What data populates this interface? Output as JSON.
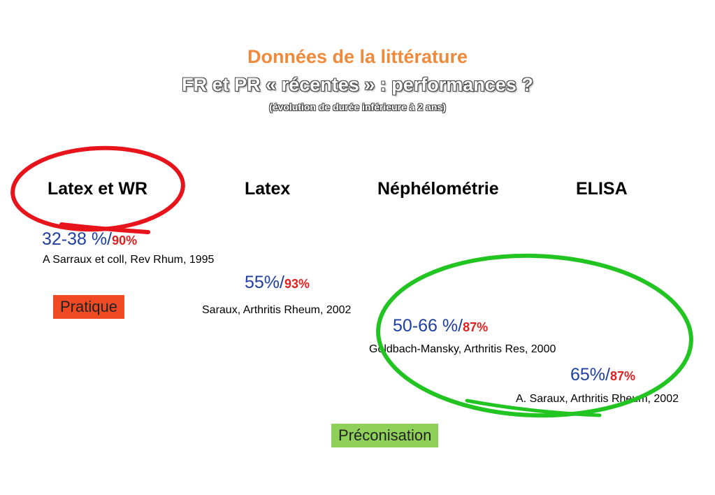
{
  "title": {
    "main": "Données de la littérature",
    "sub": "FR et PR « récentes » : performances ?",
    "note": "(évolution de durée inférieure à 2 ans)"
  },
  "columns": [
    "Latex et WR",
    "Latex",
    "Néphélométrie",
    "ELISA"
  ],
  "results": [
    {
      "value": "32-38 %/",
      "highlight": "90%",
      "reference": "A Sarraux et coll, Rev Rhum, 1995"
    },
    {
      "value": "55%/",
      "highlight": "93%",
      "reference": "Saraux, Arthritis Rheum, 2002"
    },
    {
      "value": "50-66 %/",
      "highlight": "87%",
      "reference": "Goldbach-Mansky, Arthritis Res, 2000"
    },
    {
      "value": "65%/",
      "highlight": "87%",
      "reference": "A. Saraux, Arthritis Rheum, 2002"
    }
  ],
  "tags": {
    "practice": "Pratique",
    "recommendation": "Préconisation"
  },
  "colors": {
    "title": "#ee8a3a",
    "value": "#1f3fa0",
    "highlight": "#e02020",
    "circle_red": "#e8141c",
    "circle_green": "#22c422",
    "tag_red": "#f04a24",
    "tag_green": "#8ed05a"
  }
}
